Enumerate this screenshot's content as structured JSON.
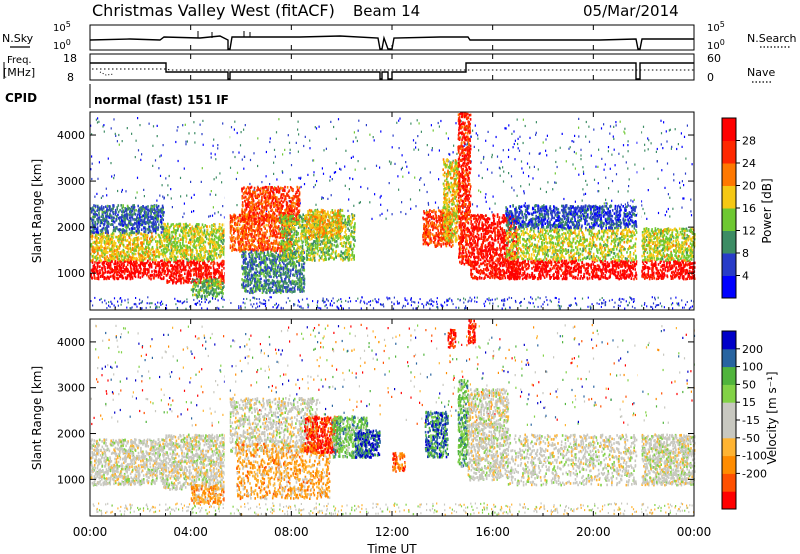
{
  "header": {
    "station": "Christmas Valley West (fitACF)",
    "beam": "Beam 14",
    "date": "05/Mar/2014"
  },
  "top_strips": {
    "sky_label": "N.Sky",
    "search_label": "N.Search",
    "sky_ticks": [
      "10^5",
      "10^0"
    ],
    "search_ticks": [
      "10^5",
      "10^0"
    ],
    "freq_label_line1": "Freq.",
    "freq_label_line2": "[MHz]",
    "freq_ticks": [
      "18",
      "8"
    ],
    "nave_label": "Nave",
    "nave_ticks": [
      "60",
      "0"
    ],
    "cpid_label": "CPID",
    "cpid_value": "normal (fast) 151 IF"
  },
  "time_axis": {
    "ticks": [
      "00:00",
      "04:00",
      "08:00",
      "12:00",
      "16:00",
      "20:00",
      "00:00"
    ],
    "label": "Time UT"
  },
  "chart_data": [
    {
      "type": "heatmap",
      "quantity": "power",
      "xlabel": "Time UT",
      "ylabel": "Slant Range [km]",
      "xlim_hours": [
        0,
        24
      ],
      "ylim": [
        200,
        4500
      ],
      "yticks": [
        "4000",
        "3000",
        "2000",
        "1000"
      ],
      "colorbar": {
        "label": "Power [dB]",
        "ticks": [
          "28",
          "24",
          "20",
          "16",
          "12",
          "8",
          "4"
        ],
        "colors": [
          "#0000ff",
          "#283cc8",
          "#3c8c64",
          "#6ec832",
          "#f5c814",
          "#ff7800",
          "#ff2800",
          "#ff0000"
        ]
      },
      "regions": [
        {
          "t": [
            0.0,
            2.9
          ],
          "range": [
            900,
            1300
          ],
          "level": 0.95
        },
        {
          "t": [
            0.0,
            2.9
          ],
          "range": [
            1300,
            1900
          ],
          "level": 0.55
        },
        {
          "t": [
            0.0,
            2.9
          ],
          "range": [
            1900,
            2500
          ],
          "level": 0.25
        },
        {
          "t": [
            2.9,
            5.4
          ],
          "range": [
            800,
            1300
          ],
          "level": 0.9
        },
        {
          "t": [
            2.9,
            5.4
          ],
          "range": [
            1300,
            2100
          ],
          "level": 0.5
        },
        {
          "t": [
            4.0,
            5.3
          ],
          "range": [
            500,
            900
          ],
          "level": 0.4
        },
        {
          "t": [
            5.4,
            8.0
          ],
          "range": [
            1500,
            2300
          ],
          "level": 0.75
        },
        {
          "t": [
            6.0,
            8.3
          ],
          "range": [
            2100,
            2900
          ],
          "level": 0.8
        },
        {
          "t": [
            6.0,
            8.5
          ],
          "range": [
            600,
            1500
          ],
          "level": 0.3
        },
        {
          "t": [
            7.5,
            10.5
          ],
          "range": [
            1300,
            2300
          ],
          "level": 0.45
        },
        {
          "t": [
            8.5,
            10.0
          ],
          "range": [
            1800,
            2400
          ],
          "level": 0.6
        },
        {
          "t": [
            13.2,
            14.4
          ],
          "range": [
            1600,
            2400
          ],
          "level": 0.8
        },
        {
          "t": [
            14.0,
            14.6
          ],
          "range": [
            1700,
            3500
          ],
          "level": 0.55
        },
        {
          "t": [
            14.6,
            15.1
          ],
          "range": [
            1200,
            4500
          ],
          "level": 0.85
        },
        {
          "t": [
            15.1,
            17.0
          ],
          "range": [
            900,
            2300
          ],
          "level": 0.9
        },
        {
          "t": [
            16.5,
            21.7
          ],
          "range": [
            900,
            1300
          ],
          "level": 0.97
        },
        {
          "t": [
            16.5,
            21.7
          ],
          "range": [
            1300,
            2000
          ],
          "level": 0.5
        },
        {
          "t": [
            16.5,
            21.7
          ],
          "range": [
            2000,
            2500
          ],
          "level": 0.2
        },
        {
          "t": [
            21.9,
            24.0
          ],
          "range": [
            900,
            1300
          ],
          "level": 0.95
        },
        {
          "t": [
            21.9,
            24.0
          ],
          "range": [
            1300,
            2000
          ],
          "level": 0.5
        }
      ]
    },
    {
      "type": "heatmap",
      "quantity": "velocity",
      "xlabel": "Time UT",
      "ylabel": "Slant Range [km]",
      "xlim_hours": [
        0,
        24
      ],
      "ylim": [
        200,
        4500
      ],
      "yticks": [
        "4000",
        "3000",
        "2000",
        "1000"
      ],
      "colorbar": {
        "label": "Velocity [m s⁻¹]",
        "ticks": [
          "200",
          "100",
          "50",
          "15",
          "-15",
          "-50",
          "-100",
          "-200"
        ],
        "colors": [
          "#ff0000",
          "#ff5000",
          "#ff8c00",
          "#ffb432",
          "#c8c8c0",
          "#c8c8c0",
          "#82d246",
          "#50b43c",
          "#2864a0",
          "#0000c8"
        ]
      },
      "regions": [
        {
          "t": [
            0.0,
            2.9
          ],
          "range": [
            900,
            1900
          ],
          "level": 0.5
        },
        {
          "t": [
            2.9,
            5.4
          ],
          "range": [
            800,
            2000
          ],
          "level": 0.5
        },
        {
          "t": [
            4.0,
            5.3
          ],
          "range": [
            500,
            900
          ],
          "level": 0.3
        },
        {
          "t": [
            5.4,
            9.0
          ],
          "range": [
            1600,
            2800
          ],
          "level": 0.5
        },
        {
          "t": [
            5.8,
            9.5
          ],
          "range": [
            600,
            1800
          ],
          "level": 0.32
        },
        {
          "t": [
            8.5,
            9.8
          ],
          "range": [
            1600,
            2400
          ],
          "level": 0.1
        },
        {
          "t": [
            9.6,
            11.0
          ],
          "range": [
            1500,
            2400
          ],
          "level": 0.7
        },
        {
          "t": [
            10.5,
            11.5
          ],
          "range": [
            1500,
            2100
          ],
          "level": 0.9
        },
        {
          "t": [
            12.0,
            12.5
          ],
          "range": [
            1200,
            1600
          ],
          "level": 0.2
        },
        {
          "t": [
            13.3,
            14.2
          ],
          "range": [
            1500,
            2500
          ],
          "level": 0.82
        },
        {
          "t": [
            14.2,
            14.5
          ],
          "range": [
            3900,
            4300
          ],
          "level": 0.05
        },
        {
          "t": [
            14.6,
            15.0
          ],
          "range": [
            1300,
            3200
          ],
          "level": 0.7
        },
        {
          "t": [
            15.0,
            15.3
          ],
          "range": [
            4000,
            4500
          ],
          "level": 0.05
        },
        {
          "t": [
            15.0,
            16.6
          ],
          "range": [
            1000,
            3000
          ],
          "level": 0.5
        },
        {
          "t": [
            16.6,
            21.7
          ],
          "range": [
            900,
            2000
          ],
          "level": 0.5
        },
        {
          "t": [
            21.9,
            24.0
          ],
          "range": [
            900,
            2000
          ],
          "level": 0.5
        }
      ]
    }
  ]
}
